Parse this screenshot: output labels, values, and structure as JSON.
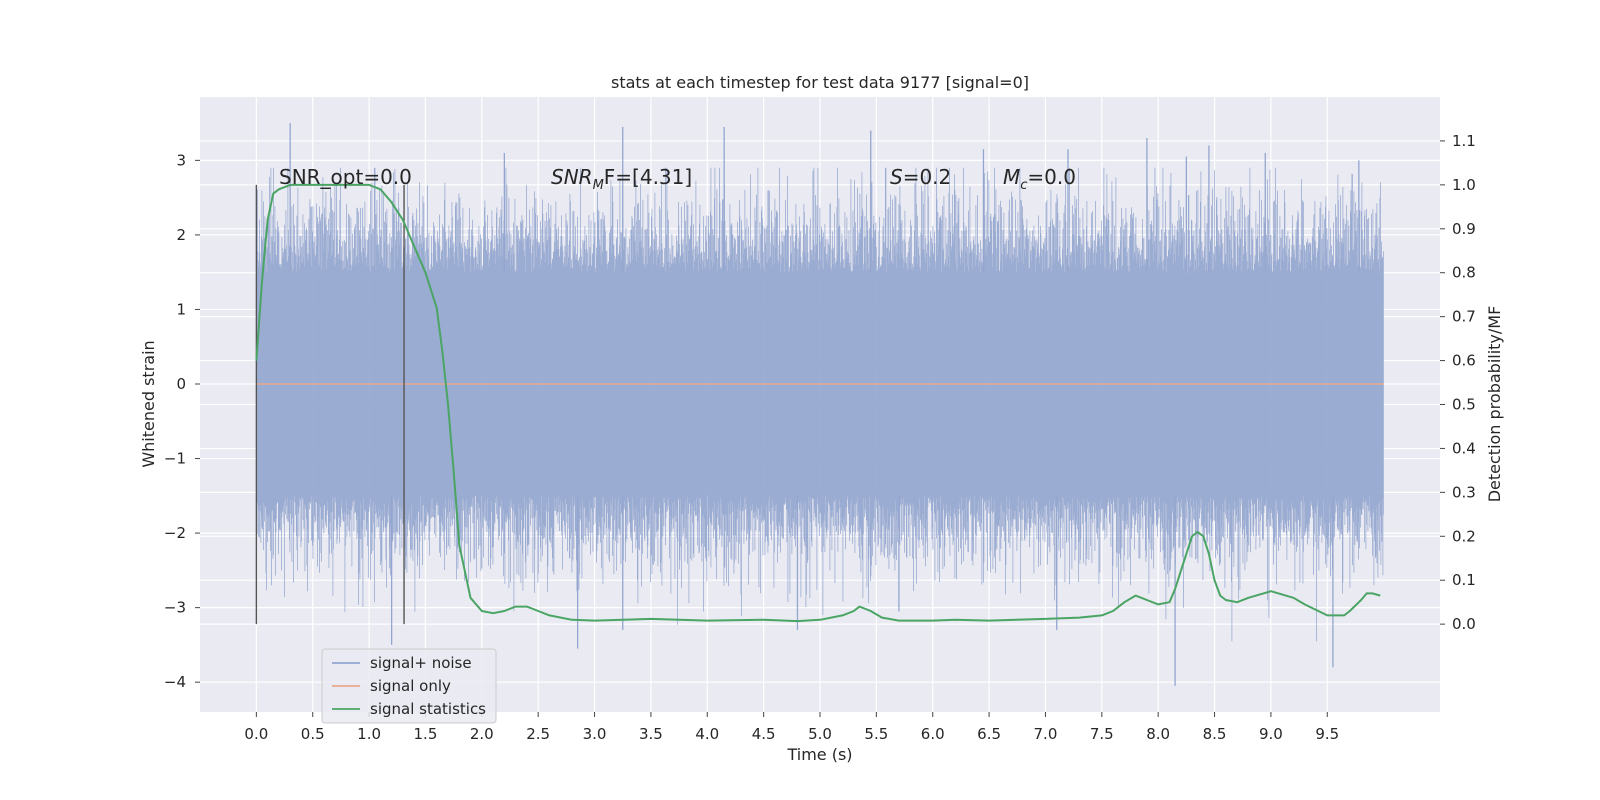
{
  "chart_data": {
    "type": "line",
    "title": "stats at each timestep for test data 9177 [signal=0]",
    "xlabel": "Time (s)",
    "ylabel_left": "Whitened strain",
    "ylabel_right": "Detection probability/MF",
    "xlim": [
      -0.5,
      10.5
    ],
    "ylim_left": [
      -4.4,
      3.85
    ],
    "ylim_right": [
      -0.2,
      1.2
    ],
    "x_ticks": [
      "0.0",
      "0.5",
      "1.0",
      "1.5",
      "2.0",
      "2.5",
      "3.0",
      "3.5",
      "4.0",
      "4.5",
      "5.0",
      "5.5",
      "6.0",
      "6.5",
      "7.0",
      "7.5",
      "8.0",
      "8.5",
      "9.0",
      "9.5"
    ],
    "y_ticks_left": [
      "3",
      "2",
      "1",
      "0",
      "−1",
      "−2",
      "−3",
      "−4"
    ],
    "y_ticks_right": [
      "1.1",
      "1.0",
      "0.9",
      "0.8",
      "0.7",
      "0.6",
      "0.5",
      "0.4",
      "0.3",
      "0.2",
      "0.1",
      "0.0"
    ],
    "grid": true,
    "legend_location": "lower-left",
    "annotations": {
      "snr_opt": "SNR_opt=0.0",
      "snr_mf_main": "SNR",
      "snr_mf_sub": "M",
      "snr_mf_rest": "F=[4.31]",
      "s_main": "S",
      "s_rest": "=0.2",
      "mc_main": "M",
      "mc_sub": "c",
      "mc_rest": "=0.0"
    },
    "vertical_markers": [
      0.0,
      1.31
    ],
    "series": [
      {
        "name": "signal+ noise",
        "axis": "left",
        "color": "#94a6cf",
        "x_range": [
          0.0,
          10.0
        ],
        "band": {
          "typical_low": -1.5,
          "typical_high": 1.5,
          "min": -4.05,
          "max": 3.5
        },
        "spikes_high": [
          [
            0.3,
            3.5
          ],
          [
            1.05,
            2.9
          ],
          [
            2.2,
            3.1
          ],
          [
            3.25,
            3.45
          ],
          [
            4.15,
            3.45
          ],
          [
            5.45,
            3.4
          ],
          [
            6.45,
            3.15
          ],
          [
            7.2,
            3.15
          ],
          [
            7.9,
            3.3
          ],
          [
            8.25,
            3.05
          ],
          [
            8.45,
            3.2
          ],
          [
            8.95,
            3.1
          ],
          [
            9.78,
            3.0
          ]
        ],
        "spikes_low": [
          [
            1.2,
            -3.5
          ],
          [
            2.85,
            -3.55
          ],
          [
            3.25,
            -3.3
          ],
          [
            4.8,
            -3.3
          ],
          [
            5.7,
            -3.05
          ],
          [
            7.1,
            -3.3
          ],
          [
            8.15,
            -4.05
          ],
          [
            9.55,
            -3.8
          ]
        ]
      },
      {
        "name": "signal only",
        "axis": "left",
        "color": "#e8a98e",
        "x": [
          0.0,
          10.0
        ],
        "y": [
          0.0,
          0.0
        ]
      },
      {
        "name": "signal statistics",
        "axis": "right",
        "color": "#4aa564",
        "x": [
          0.0,
          0.05,
          0.1,
          0.15,
          0.2,
          0.3,
          0.5,
          0.8,
          1.0,
          1.1,
          1.2,
          1.3,
          1.4,
          1.5,
          1.6,
          1.65,
          1.7,
          1.75,
          1.8,
          1.9,
          2.0,
          2.1,
          2.2,
          2.3,
          2.4,
          2.5,
          2.6,
          2.8,
          3.0,
          3.5,
          4.0,
          4.5,
          4.8,
          5.0,
          5.2,
          5.3,
          5.35,
          5.45,
          5.55,
          5.7,
          6.0,
          6.2,
          6.5,
          7.0,
          7.3,
          7.5,
          7.6,
          7.7,
          7.8,
          7.85,
          7.9,
          8.0,
          8.1,
          8.15,
          8.2,
          8.3,
          8.35,
          8.4,
          8.45,
          8.5,
          8.55,
          8.6,
          8.7,
          8.8,
          9.0,
          9.2,
          9.3,
          9.5,
          9.65,
          9.7,
          9.8,
          9.85,
          9.9,
          9.97
        ],
        "y": [
          0.6,
          0.78,
          0.92,
          0.98,
          0.99,
          1.0,
          1.0,
          1.0,
          1.0,
          0.99,
          0.96,
          0.92,
          0.86,
          0.8,
          0.72,
          0.62,
          0.5,
          0.35,
          0.18,
          0.06,
          0.03,
          0.025,
          0.03,
          0.04,
          0.04,
          0.03,
          0.02,
          0.01,
          0.008,
          0.012,
          0.008,
          0.01,
          0.007,
          0.01,
          0.02,
          0.03,
          0.04,
          0.03,
          0.015,
          0.008,
          0.008,
          0.01,
          0.008,
          0.012,
          0.015,
          0.02,
          0.03,
          0.05,
          0.065,
          0.06,
          0.055,
          0.045,
          0.05,
          0.08,
          0.12,
          0.2,
          0.21,
          0.2,
          0.16,
          0.1,
          0.065,
          0.055,
          0.05,
          0.06,
          0.075,
          0.06,
          0.045,
          0.02,
          0.02,
          0.03,
          0.055,
          0.07,
          0.07,
          0.065
        ]
      }
    ]
  }
}
